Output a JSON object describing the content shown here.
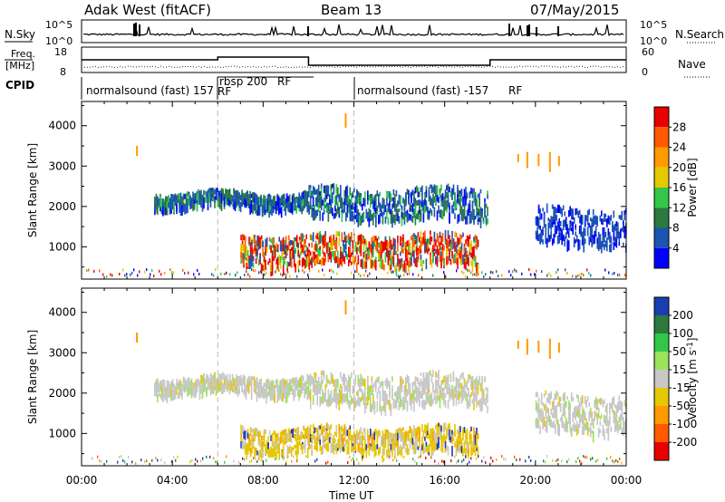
{
  "header": {
    "radar": "Adak West (fitACF)",
    "beam": "Beam 13",
    "date": "07/May/2015"
  },
  "strips": {
    "nsky": {
      "label": "N.Sky",
      "ticks": [
        "10^5",
        "10^0"
      ],
      "right_label": "N.Search",
      "right_ticks": [
        "10^5",
        "10^0"
      ]
    },
    "freq": {
      "label_line1": "Freq.",
      "label_line2": "[MHz]",
      "ticks": [
        "18",
        "8"
      ],
      "right_label": "Nave",
      "right_ticks": [
        "60",
        "0"
      ]
    },
    "cpid": {
      "label": "CPID",
      "segments": [
        {
          "label": "normalsound (fast) 157",
          "start": 0,
          "end": 6
        },
        {
          "label": "rbsp 200",
          "start": 6,
          "end": 9.1
        },
        {
          "label": "normalsound (fast) -157",
          "start": 12,
          "end": 24
        }
      ]
    }
  },
  "chart_data": [
    {
      "type": "heatmap",
      "title": "",
      "quantity": "Power",
      "xlabel": "Time UT",
      "ylabel": "Slant Range [km]",
      "x_ticks": [
        "00:00",
        "04:00",
        "08:00",
        "12:00",
        "16:00",
        "20:00",
        "00:00"
      ],
      "xlim_hours": [
        0,
        24
      ],
      "y_ticks": [
        1000,
        2000,
        3000,
        4000
      ],
      "ylim_km": [
        200,
        4600
      ],
      "colorbar": {
        "label": "Power [dB]",
        "ticks": [
          4,
          8,
          12,
          16,
          20,
          24,
          28
        ],
        "range": [
          0,
          32
        ],
        "colors": [
          "#0000ff",
          "#1c54b4",
          "#2b7a3e",
          "#33c74a",
          "#e6c800",
          "#ff9a00",
          "#ff5a00",
          "#e80000"
        ]
      },
      "echo_regions": [
        {
          "t_start": 3.2,
          "t_end": 10.0,
          "range_km": [
            2050,
            2400
          ],
          "level": "moderate"
        },
        {
          "t_start": 10.0,
          "t_end": 17.9,
          "range_km": [
            1750,
            2500
          ],
          "level": "moderate"
        },
        {
          "t_start": 7.0,
          "t_end": 17.5,
          "range_km": [
            600,
            1350
          ],
          "level": "strong"
        },
        {
          "t_start": 20.0,
          "t_end": 24.0,
          "range_km": [
            1100,
            2000
          ],
          "level": "weak"
        }
      ]
    },
    {
      "type": "heatmap",
      "title": "",
      "quantity": "Velocity",
      "xlabel": "Time UT",
      "ylabel": "Slant Range [km]",
      "x_ticks": [
        "00:00",
        "04:00",
        "08:00",
        "12:00",
        "16:00",
        "20:00",
        "00:00"
      ],
      "xlim_hours": [
        0,
        24
      ],
      "y_ticks": [
        1000,
        2000,
        3000,
        4000
      ],
      "ylim_km": [
        200,
        4600
      ],
      "colorbar": {
        "label": "Velocity [m s",
        "label_sup": "-1",
        "label_end": "]",
        "ticks": [
          200,
          100,
          50,
          15,
          -15,
          -50,
          -100,
          -200
        ],
        "colors": [
          "#1c3cb4",
          "#2b7a3e",
          "#33c74a",
          "#9be35a",
          "#c8c8c8",
          "#e6c800",
          "#ff9a00",
          "#ff5a00",
          "#e80000"
        ]
      },
      "echo_regions": [
        {
          "t_start": 3.2,
          "t_end": 10.0,
          "range_km": [
            2050,
            2450
          ],
          "level": "near-zero"
        },
        {
          "t_start": 10.0,
          "t_end": 17.9,
          "range_km": [
            1750,
            2500
          ],
          "level": "near-zero"
        },
        {
          "t_start": 7.0,
          "t_end": 17.5,
          "range_km": [
            600,
            1200
          ],
          "level": "negative"
        },
        {
          "t_start": 20.0,
          "t_end": 24.0,
          "range_km": [
            1100,
            2000
          ],
          "level": "near-zero"
        }
      ]
    }
  ]
}
